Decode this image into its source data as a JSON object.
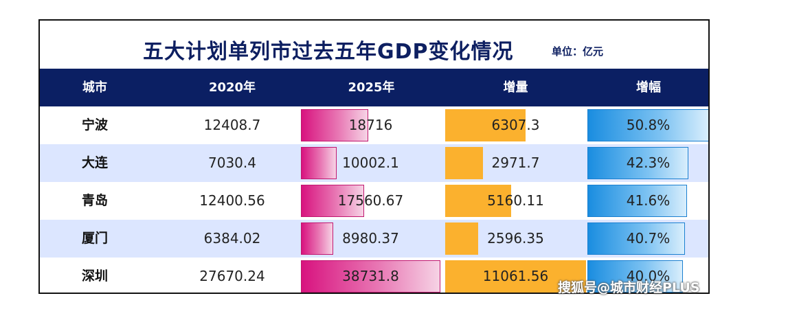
{
  "title": "五大计划单列市过去五年GDP变化情况",
  "unit": "单位：亿元",
  "headers": [
    "城市",
    "2020年",
    "2025年",
    "增量",
    "增幅"
  ],
  "watermark": "搜狐号@城市财经PLUS",
  "colors": {
    "header_bg": "#0b1f63",
    "title": "#0d1f61",
    "bar_2025": "#d8137f",
    "bar_increase": "#fbb12e",
    "bar_growth": "#1a8de0",
    "row_alt": "#dce6ff"
  },
  "chart_data": {
    "type": "table",
    "title": "五大计划单列市过去五年GDP变化情况",
    "unit": "单位：亿元",
    "columns": [
      "城市",
      "2020年",
      "2025年",
      "增量",
      "增幅"
    ],
    "rows": [
      {
        "city": "宁波",
        "gdp2020": "12408.7",
        "gdp2025": "18716",
        "increase": "6307.3",
        "growth": "50.8%",
        "v2025": 18716,
        "vinc": 6307.3,
        "vpct": 50.8
      },
      {
        "city": "大连",
        "gdp2020": "7030.4",
        "gdp2025": "10002.1",
        "increase": "2971.7",
        "growth": "42.3%",
        "v2025": 10002.1,
        "vinc": 2971.7,
        "vpct": 42.3
      },
      {
        "city": "青岛",
        "gdp2020": "12400.56",
        "gdp2025": "17560.67",
        "increase": "5160.11",
        "growth": "41.6%",
        "v2025": 17560.67,
        "vinc": 5160.11,
        "vpct": 41.6
      },
      {
        "city": "厦门",
        "gdp2020": "6384.02",
        "gdp2025": "8980.37",
        "increase": "2596.35",
        "growth": "40.7%",
        "v2025": 8980.37,
        "vinc": 2596.35,
        "vpct": 40.7
      },
      {
        "city": "深圳",
        "gdp2020": "27670.24",
        "gdp2025": "38731.8",
        "increase": "11061.56",
        "growth": "40.0%",
        "v2025": 38731.8,
        "vinc": 11061.56,
        "vpct": 40.0
      }
    ]
  }
}
